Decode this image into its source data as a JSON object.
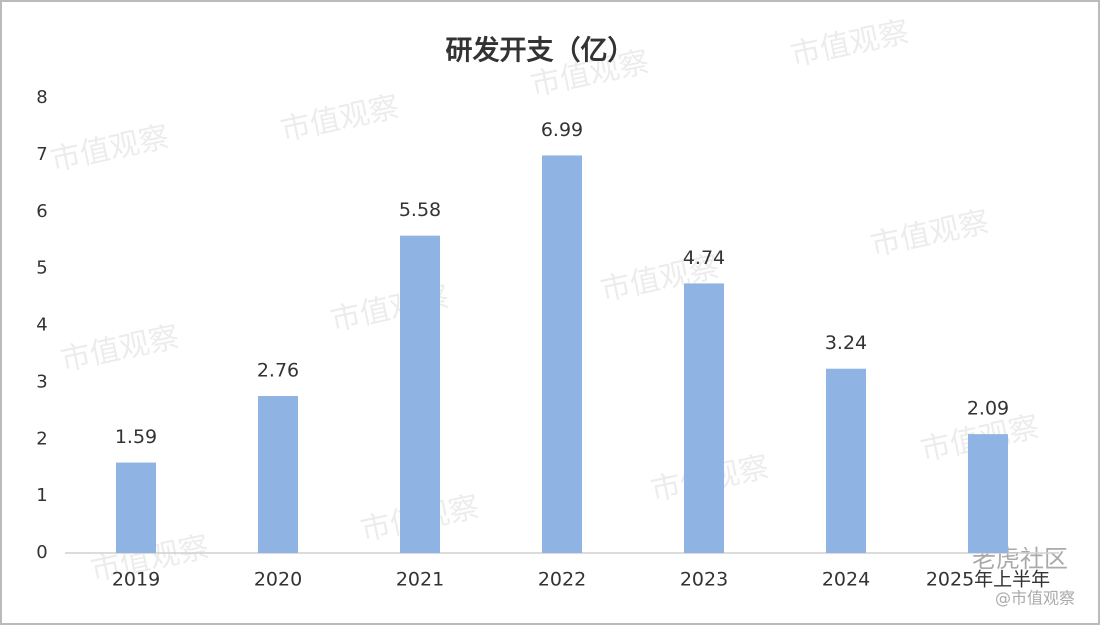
{
  "chart_data": {
    "type": "bar",
    "title": "研发开支（亿）",
    "categories": [
      "2019",
      "2020",
      "2021",
      "2022",
      "2023",
      "2024",
      "2025年上半年"
    ],
    "values": [
      1.59,
      2.76,
      5.58,
      6.99,
      4.74,
      3.24,
      2.09
    ],
    "color": "#8fb4e3",
    "ylim": [
      0,
      8
    ],
    "yticks": [
      0,
      1,
      2,
      3,
      4,
      5,
      6,
      7,
      8
    ],
    "grid": false,
    "watermark": "市值观察",
    "footer": {
      "source": "老虎社区",
      "credit": "@市值观察"
    }
  }
}
